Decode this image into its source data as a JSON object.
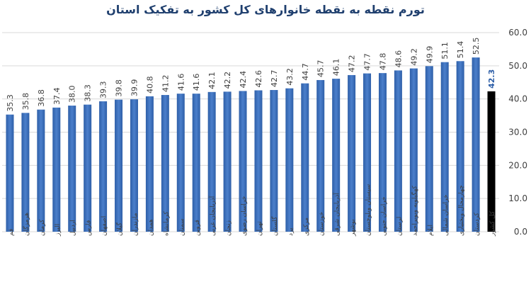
{
  "chart_data": {
    "type": "bar",
    "title": "تورم نقطه به نقطه خانوارهای کل کشور به تفکیک استان",
    "xlabel": "",
    "ylabel": "",
    "ylim": [
      0,
      60
    ],
    "yticks": [
      "0.0",
      "10.0",
      "20.0",
      "30.0",
      "40.0",
      "50.0",
      "60.0"
    ],
    "y_axis_position": "right",
    "grid": true,
    "categories": [
      "قم",
      "هرمزگان",
      "کرمان",
      "البرز",
      "اردبیل",
      "فارس",
      "اصفهان",
      "گیلان",
      "مازندران",
      "همدان",
      "کرمانشاه",
      "سمنان",
      "قزوین",
      "آذربایجان غربی",
      "زنجان",
      "خراسان رضوی",
      "تهران",
      "گلستان",
      "یزد",
      "مرکزی",
      "خوزستان",
      "آذربایجان شرقی",
      "بوشهر",
      "سیستان وبلوچستان",
      "خراسان جنوبی",
      "لرستان",
      "کهگیلویه وبویراحمد",
      "ایلام",
      "خراسان شمالی",
      "چهارمحال وبختیاری",
      "کردستان",
      "کل کشور"
    ],
    "values": [
      35.3,
      35.8,
      36.8,
      37.4,
      38.0,
      38.3,
      39.3,
      39.8,
      39.9,
      40.8,
      41.2,
      41.6,
      41.6,
      42.1,
      42.2,
      42.4,
      42.6,
      42.7,
      43.2,
      44.7,
      45.7,
      46.1,
      47.2,
      47.7,
      47.8,
      48.6,
      49.2,
      49.9,
      51.1,
      51.4,
      52.5,
      42.3
    ],
    "labels": [
      "35.3",
      "35.8",
      "36.8",
      "37.4",
      "38.0",
      "38.3",
      "39.3",
      "39.8",
      "39.9",
      "40.8",
      "41.2",
      "41.6",
      "41.6",
      "42.1",
      "42.2",
      "42.4",
      "42.6",
      "42.7",
      "43.2",
      "44.7",
      "45.7",
      "46.1",
      "47.2",
      "47.7",
      "47.8",
      "48.6",
      "49.2",
      "49.9",
      "51.1",
      "51.4",
      "52.5",
      "42.3"
    ],
    "highlight_index": 31,
    "colors": {
      "bar": "#2e5fa8",
      "bar_light": "#4b7fcb",
      "highlight_bar": "#000000",
      "highlight_label": "#2e5fa8",
      "grid": "#d9d9d9",
      "axis_text": "#404040",
      "title": "#1f3f6e"
    }
  }
}
